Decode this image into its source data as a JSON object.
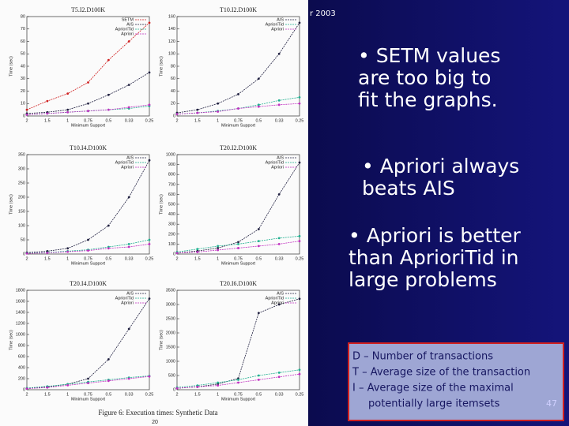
{
  "header": "r 2003",
  "chart_data": [
    {
      "type": "line",
      "title": "T5.I2.D100K",
      "xlabel": "Minimum Support",
      "ylabel": "Time (sec)",
      "categories": [
        "2",
        "1.5",
        "1",
        "0.75",
        "0.5",
        "0.33",
        "0.25"
      ],
      "ylim": [
        0,
        80
      ],
      "yticks": [
        0,
        10,
        20,
        30,
        40,
        50,
        60,
        70,
        80
      ],
      "series": [
        {
          "name": "SETM",
          "color": "#d02020",
          "values": [
            5,
            12,
            18,
            27,
            45,
            60,
            75
          ]
        },
        {
          "name": "AIS",
          "color": "#202040",
          "values": [
            2,
            3,
            5,
            10,
            17,
            25,
            35
          ]
        },
        {
          "name": "AprioriTid",
          "color": "#20b090",
          "values": [
            1,
            2,
            3,
            4,
            5,
            6,
            8
          ]
        },
        {
          "name": "Apriori",
          "color": "#c030c0",
          "values": [
            1,
            2,
            3,
            4,
            5,
            7,
            9
          ]
        }
      ]
    },
    {
      "type": "line",
      "title": "T10.I2.D100K",
      "xlabel": "Minimum Support",
      "ylabel": "Time (sec)",
      "categories": [
        "2",
        "1.5",
        "1",
        "0.75",
        "0.5",
        "0.33",
        "0.25"
      ],
      "ylim": [
        0,
        160
      ],
      "yticks": [
        0,
        20,
        40,
        60,
        80,
        100,
        120,
        140,
        160
      ],
      "series": [
        {
          "name": "AIS",
          "color": "#202040",
          "values": [
            5,
            10,
            20,
            35,
            60,
            100,
            150
          ]
        },
        {
          "name": "AprioriTid",
          "color": "#20b090",
          "values": [
            3,
            5,
            8,
            12,
            18,
            25,
            30
          ]
        },
        {
          "name": "Apriori",
          "color": "#c030c0",
          "values": [
            3,
            5,
            7,
            12,
            15,
            18,
            20
          ]
        }
      ]
    },
    {
      "type": "line",
      "title": "T10.I4.D100K",
      "xlabel": "Minimum Support",
      "ylabel": "Time (sec)",
      "categories": [
        "2",
        "1.5",
        "1",
        "0.75",
        "0.5",
        "0.33",
        "0.25"
      ],
      "ylim": [
        0,
        350
      ],
      "yticks": [
        0,
        50,
        100,
        150,
        200,
        250,
        300,
        350
      ],
      "series": [
        {
          "name": "AIS",
          "color": "#202040",
          "values": [
            5,
            10,
            20,
            50,
            100,
            200,
            330
          ]
        },
        {
          "name": "AprioriTid",
          "color": "#20b090",
          "values": [
            3,
            5,
            10,
            15,
            25,
            35,
            50
          ]
        },
        {
          "name": "Apriori",
          "color": "#c030c0",
          "values": [
            2,
            4,
            8,
            12,
            20,
            25,
            35
          ]
        }
      ]
    },
    {
      "type": "line",
      "title": "T20.I2.D100K",
      "xlabel": "Minimum Support",
      "ylabel": "Time (sec)",
      "categories": [
        "2",
        "1.5",
        "1",
        "0.75",
        "0.5",
        "0.33",
        "0.25"
      ],
      "ylim": [
        0,
        1000
      ],
      "yticks": [
        0,
        100,
        200,
        300,
        400,
        500,
        600,
        700,
        800,
        900,
        1000
      ],
      "series": [
        {
          "name": "AIS",
          "color": "#202040",
          "values": [
            10,
            30,
            60,
            120,
            250,
            600,
            920
          ]
        },
        {
          "name": "AprioriTid",
          "color": "#20b090",
          "values": [
            20,
            50,
            80,
            100,
            130,
            160,
            180
          ]
        },
        {
          "name": "Apriori",
          "color": "#c030c0",
          "values": [
            10,
            20,
            40,
            60,
            80,
            100,
            130
          ]
        }
      ]
    },
    {
      "type": "line",
      "title": "T20.I4.D100K",
      "xlabel": "Minimum Support",
      "ylabel": "Time (sec)",
      "categories": [
        "2",
        "1.5",
        "1",
        "0.75",
        "0.5",
        "0.33",
        "0.25"
      ],
      "ylim": [
        0,
        1800
      ],
      "yticks": [
        0,
        200,
        400,
        600,
        800,
        1000,
        1200,
        1400,
        1600,
        1800
      ],
      "series": [
        {
          "name": "AIS",
          "color": "#202040",
          "values": [
            20,
            50,
            100,
            200,
            550,
            1100,
            1650
          ]
        },
        {
          "name": "AprioriTid",
          "color": "#20b090",
          "values": [
            30,
            60,
            100,
            140,
            180,
            220,
            250
          ]
        },
        {
          "name": "Apriori",
          "color": "#c030c0",
          "values": [
            20,
            40,
            80,
            120,
            160,
            200,
            240
          ]
        }
      ]
    },
    {
      "type": "line",
      "title": "T20.I6.D100K",
      "xlabel": "Minimum Support",
      "ylabel": "Time (sec)",
      "categories": [
        "2",
        "1.5",
        "1",
        "0.75",
        "0.5",
        "0.33",
        "0.25"
      ],
      "ylim": [
        0,
        3500
      ],
      "yticks": [
        0,
        500,
        1000,
        1500,
        2000,
        2500,
        3000,
        3500
      ],
      "series": [
        {
          "name": "AIS",
          "color": "#202040",
          "values": [
            50,
            100,
            200,
            400,
            2700,
            3000,
            3200
          ]
        },
        {
          "name": "AprioriTid",
          "color": "#20b090",
          "values": [
            80,
            150,
            250,
            350,
            500,
            600,
            700
          ]
        },
        {
          "name": "Apriori",
          "color": "#c030c0",
          "values": [
            50,
            100,
            150,
            250,
            350,
            450,
            550
          ]
        }
      ]
    }
  ],
  "figure": {
    "caption": "Figure 6: Execution times: Synthetic Data",
    "page": "20"
  },
  "bullets": [
    [
      "• SETM values",
      "are too big to",
      "fit the graphs."
    ],
    [
      "• Apriori always",
      "beats AIS"
    ],
    [
      "• Apriori is better",
      "than AprioriTid in",
      "large problems"
    ]
  ],
  "definitions": [
    "D – Number of transactions",
    "T – Average size of the transaction",
    "I – Average size of the maximal",
    "potentially large itemsets"
  ],
  "slide_number": "47"
}
